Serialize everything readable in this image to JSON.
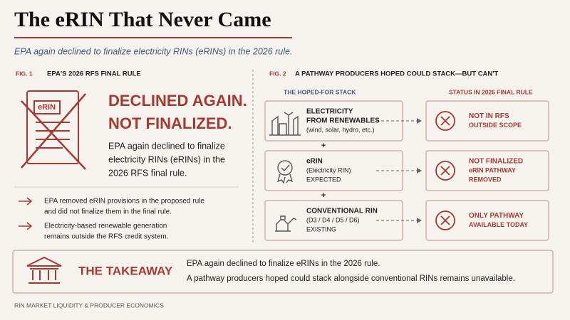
{
  "header": {
    "title": "The eRIN That Never Came",
    "subtitle": "EPA again declined to finalize electricity RINs (eRINs) in the 2026 rule."
  },
  "fig1": {
    "label": "FIG. 1",
    "title": "EPA'S 2026 RFS FINAL RULE",
    "icon_label": "eRIN",
    "headline": [
      "DECLINED AGAIN.",
      "NOT FINALIZED."
    ],
    "body": [
      "EPA again declined to finalize",
      "electricity RINs (eRINs) in the",
      "2026 RFS final rule."
    ],
    "bullets": [
      [
        "EPA removed eRIN provisions in the proposed rule",
        "and did not finalize them in the final rule."
      ],
      [
        "Electricity-based renewable generation",
        "remains outside the RFS credit system."
      ]
    ]
  },
  "fig2": {
    "label": "FIG. 2",
    "title": "A PATHWAY PRODUCERS HOPED COULD STACK—BUT CAN'T",
    "stack_heading": "THE HOPED-FOR STACK",
    "status_heading": "STATUS IN 2026 FINAL RULE",
    "connector": "+",
    "stack": [
      {
        "title": [
          "ELECTRICITY",
          "FROM RENEWABLES"
        ],
        "detail": [
          "(wind, solar, hydro, etc.)"
        ]
      },
      {
        "title": [
          "eRIN"
        ],
        "detail": [
          "(Electricity RIN)",
          "EXPECTED"
        ]
      },
      {
        "title": [
          "CONVENTIONAL RIN"
        ],
        "detail": [
          "(D3 / D4 / D5 / D6)",
          "EXISTING"
        ]
      }
    ],
    "statuses": [
      [
        "NOT IN RFS",
        "OUTSIDE SCOPE"
      ],
      [
        "NOT FINALIZED",
        "eRIN PATHWAY",
        "REMOVED"
      ],
      [
        "ONLY PATHWAY",
        "AVAILABLE TODAY"
      ]
    ]
  },
  "takeaway": {
    "label": "THE TAKEAWAY",
    "lines": [
      "EPA again declined to finalize eRINs in the 2026 rule.",
      "A pathway producers hoped could stack alongside conventional RINs remains unavailable."
    ]
  },
  "footer": "RIN MARKET LIQUIDITY & PRODUCER ECONOMICS"
}
